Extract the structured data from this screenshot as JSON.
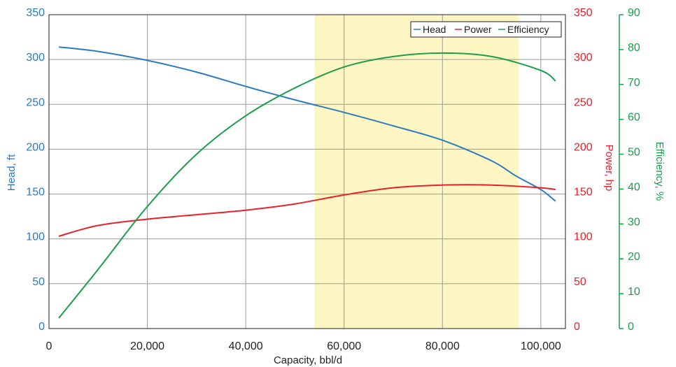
{
  "chart_data": {
    "type": "line",
    "xlabel": "Capacity, bbl/d",
    "xlim": [
      0,
      105000
    ],
    "x_ticks": [
      0,
      20000,
      40000,
      60000,
      80000,
      100000
    ],
    "x_tick_labels": [
      "0",
      "20,000",
      "40,000",
      "60,000",
      "80,000",
      "100,000"
    ],
    "grid": true,
    "legend_position": "top-right",
    "shaded_region": {
      "x_start": 54000,
      "x_end": 95500,
      "color": "#fdf6c3"
    },
    "axes": [
      {
        "id": "head",
        "label": "Head, ft",
        "side": "left",
        "color": "#2b7bbf",
        "ylim": [
          0,
          350
        ],
        "ticks": [
          0,
          50,
          100,
          150,
          200,
          250,
          300,
          350
        ],
        "tick_labels": [
          "0",
          "50",
          "100",
          "150",
          "200",
          "250",
          "300",
          "350"
        ]
      },
      {
        "id": "power",
        "label": "Power, hp",
        "side": "right",
        "color": "#e8202a",
        "ylim": [
          0,
          350
        ],
        "ticks": [
          0,
          50,
          100,
          150,
          200,
          250,
          300,
          350
        ],
        "tick_labels": [
          "0",
          "50",
          "100",
          "150",
          "200",
          "250",
          "300",
          "350"
        ]
      },
      {
        "id": "efficiency",
        "label": "Efficiency, %",
        "side": "right-outer",
        "color": "#1a9e4a",
        "ylim": [
          0,
          90
        ],
        "ticks": [
          0,
          10,
          20,
          30,
          40,
          50,
          60,
          70,
          80,
          90
        ],
        "tick_labels": [
          "0",
          "10",
          "20",
          "30",
          "40",
          "50",
          "60",
          "70",
          "80",
          "90"
        ]
      }
    ],
    "series": [
      {
        "name": "Head",
        "axis": "head",
        "color": "#2b7bbf",
        "x": [
          2000,
          10000,
          20000,
          30000,
          40000,
          50000,
          60000,
          70000,
          80000,
          90000,
          95000,
          100000,
          103000
        ],
        "y": [
          314,
          309,
          299,
          286,
          270,
          255,
          241,
          226,
          210,
          187,
          170,
          155,
          142
        ]
      },
      {
        "name": "Power",
        "axis": "power",
        "color": "#e8202a",
        "x": [
          2000,
          10000,
          20000,
          30000,
          40000,
          50000,
          60000,
          70000,
          80000,
          90000,
          100000,
          103000
        ],
        "y": [
          103,
          115,
          122,
          127,
          132,
          139,
          149,
          157,
          160,
          160,
          157,
          155
        ]
      },
      {
        "name": "Efficiency",
        "axis": "efficiency",
        "color": "#1a9e4a",
        "x": [
          2000,
          10000,
          20000,
          30000,
          40000,
          50000,
          60000,
          70000,
          80000,
          90000,
          100000,
          103000
        ],
        "y": [
          3,
          17,
          35,
          50,
          61,
          69,
          75,
          78,
          79,
          78,
          74,
          71
        ]
      }
    ]
  }
}
